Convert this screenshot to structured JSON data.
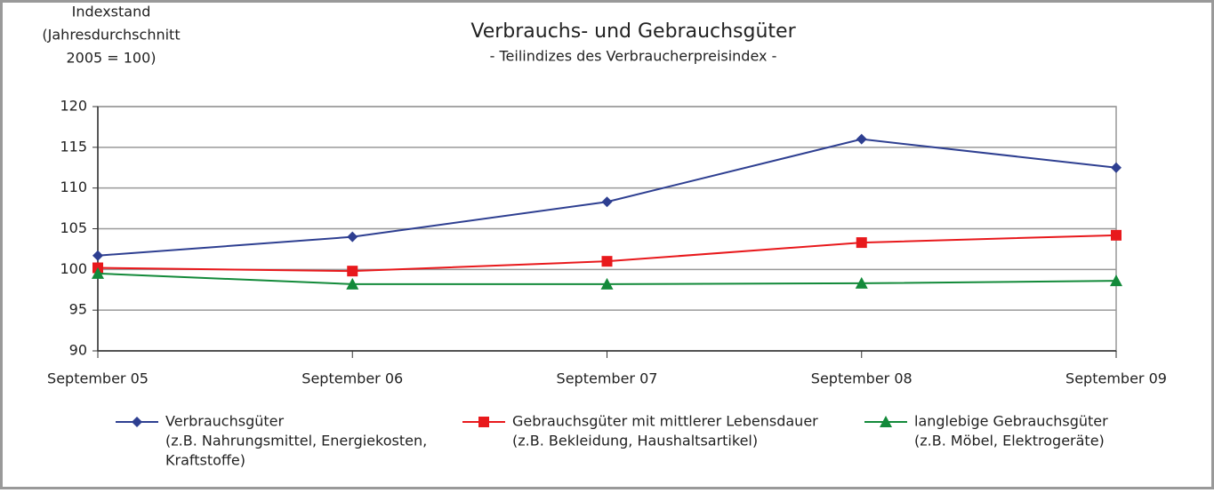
{
  "chart_data": {
    "type": "line",
    "title": "Verbrauchs- und Gebrauchsgüter",
    "subtitle": "- Teilindizes des Verbraucherpreisindex -",
    "ylabel": [
      "Indexstand",
      "(Jahresdurchschnitt",
      "2005 = 100)"
    ],
    "categories": [
      "September 05",
      "September 06",
      "September 07",
      "September 08",
      "September 09"
    ],
    "series": [
      {
        "name": "Verbrauchsgüter",
        "note": [
          "(z.B. Nahrungsmittel, Energiekosten,",
          "Kraftstoffe)"
        ],
        "color": "#2e3f91",
        "marker": "diamond",
        "values": [
          101.7,
          104,
          108.3,
          116,
          112.5
        ]
      },
      {
        "name": "Gebrauchsgüter mit mittlerer Lebensdauer",
        "note": [
          "(z.B. Bekleidung, Haushaltsartikel)"
        ],
        "color": "#e8191c",
        "marker": "square",
        "values": [
          100.2,
          99.8,
          101,
          103.3,
          104.2
        ]
      },
      {
        "name": "langlebige Gebrauchsgüter",
        "note": [
          "(z.B. Möbel, Elektrogeräte)"
        ],
        "color": "#138a3a",
        "marker": "triangle",
        "values": [
          99.5,
          98.2,
          98.2,
          98.3,
          98.6
        ]
      }
    ],
    "ylim": [
      90,
      120
    ],
    "yticks": [
      90,
      95,
      100,
      105,
      110,
      115,
      120
    ],
    "grid": true
  }
}
